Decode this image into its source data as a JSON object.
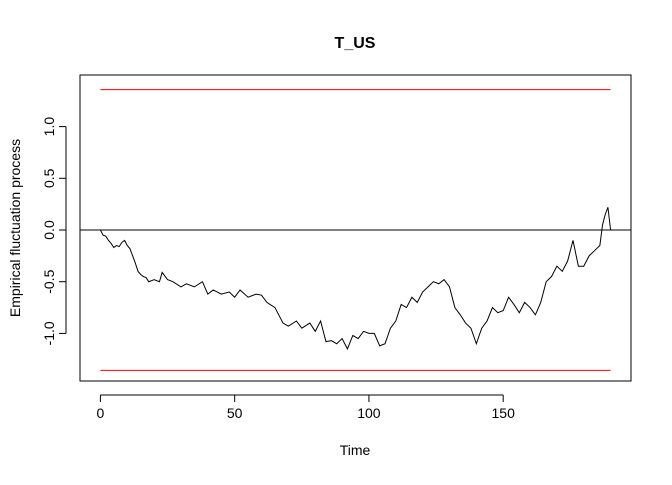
{
  "chart_data": {
    "type": "line",
    "title": "T_US",
    "xlabel": "Time",
    "ylabel": "Empirical fluctuation process",
    "x": [
      0,
      1,
      2,
      3,
      4,
      5,
      6,
      7,
      8,
      9,
      10,
      11,
      12,
      13,
      14,
      15,
      16,
      17,
      18,
      20,
      22,
      23,
      25,
      27,
      30,
      32,
      35,
      38,
      40,
      42,
      45,
      48,
      50,
      52,
      55,
      58,
      60,
      62,
      65,
      68,
      70,
      73,
      75,
      78,
      80,
      82,
      84,
      86,
      88,
      90,
      92,
      94,
      96,
      98,
      100,
      102,
      104,
      106,
      108,
      110,
      112,
      114,
      116,
      118,
      120,
      122,
      124,
      126,
      128,
      130,
      132,
      134,
      136,
      138,
      140,
      142,
      144,
      146,
      148,
      150,
      152,
      154,
      156,
      158,
      160,
      162,
      164,
      166,
      168,
      170,
      172,
      174,
      176,
      178,
      180,
      182,
      184,
      186,
      187,
      188,
      189,
      190
    ],
    "series": [
      {
        "color": "#000000",
        "values": [
          0,
          -0.05,
          -0.06,
          -0.1,
          -0.13,
          -0.17,
          -0.15,
          -0.16,
          -0.12,
          -0.1,
          -0.15,
          -0.18,
          -0.25,
          -0.32,
          -0.4,
          -0.43,
          -0.45,
          -0.46,
          -0.5,
          -0.48,
          -0.5,
          -0.41,
          -0.48,
          -0.5,
          -0.55,
          -0.52,
          -0.55,
          -0.5,
          -0.62,
          -0.58,
          -0.62,
          -0.6,
          -0.65,
          -0.58,
          -0.65,
          -0.62,
          -0.63,
          -0.7,
          -0.75,
          -0.9,
          -0.93,
          -0.88,
          -0.95,
          -0.9,
          -0.98,
          -0.88,
          -1.08,
          -1.07,
          -1.1,
          -1.05,
          -1.15,
          -1.02,
          -1.05,
          -0.98,
          -1.0,
          -1.0,
          -1.12,
          -1.1,
          -0.95,
          -0.88,
          -0.72,
          -0.75,
          -0.65,
          -0.7,
          -0.6,
          -0.55,
          -0.5,
          -0.52,
          -0.48,
          -0.55,
          -0.75,
          -0.82,
          -0.9,
          -0.95,
          -1.1,
          -0.95,
          -0.88,
          -0.75,
          -0.8,
          -0.78,
          -0.65,
          -0.72,
          -0.8,
          -0.7,
          -0.75,
          -0.82,
          -0.7,
          -0.5,
          -0.45,
          -0.35,
          -0.4,
          -0.3,
          -0.1,
          -0.35,
          -0.35,
          -0.25,
          -0.2,
          -0.15,
          0.05,
          0.15,
          0.22,
          0.0
        ]
      }
    ],
    "boundaries": {
      "values": [
        1.358,
        -1.358
      ],
      "color": "#ff0000"
    },
    "reference_line": 0,
    "xlim": [
      -7.6,
      197.6
    ],
    "ylim": [
      -1.47,
      1.47
    ],
    "xticks": [
      0,
      50,
      100,
      150
    ],
    "yticks": [
      {
        "value": -1,
        "label": "-1.0"
      },
      -0.5,
      {
        "value": 0,
        "label": "0.0"
      },
      0.5,
      {
        "value": 1,
        "label": "1.0"
      }
    ]
  }
}
